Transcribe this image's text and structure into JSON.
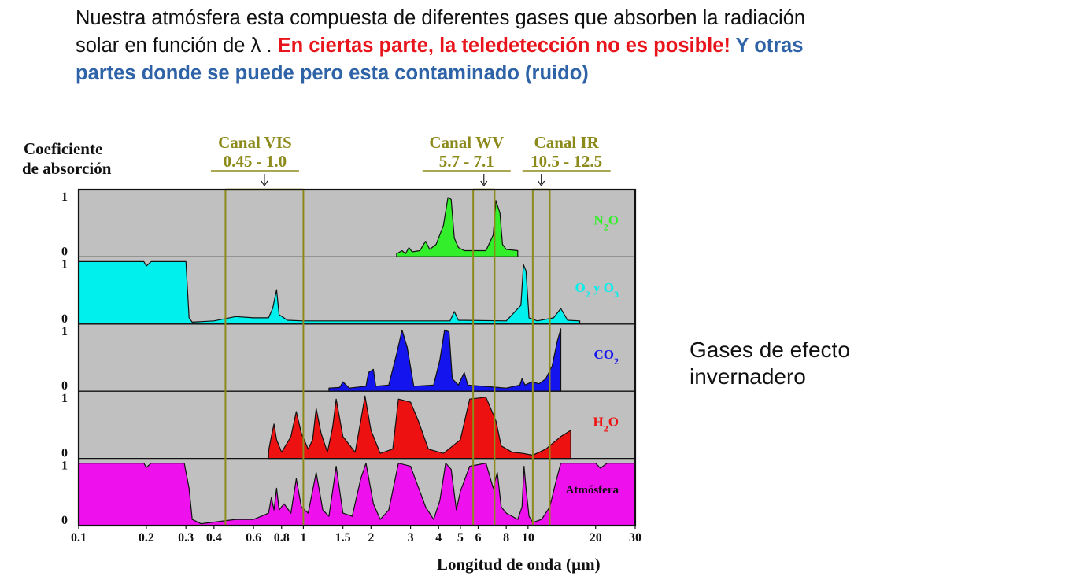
{
  "intro": {
    "line1": "Nuestra atmósfera esta compuesta de diferentes gases que absorben la radiación",
    "line2_plain": "solar en función de λ . ",
    "line2_red": "En ciertas parte, la teledetección no es posible!",
    "line2_blue": " Y otras",
    "line3_blue": "partes donde se puede pero esta contaminado (ruido)"
  },
  "side_label": {
    "line1": "Gases de efecto",
    "line2": "invernadero"
  },
  "chart_data": {
    "type": "area",
    "title": "",
    "ylabel_line1": "Coeficiente",
    "ylabel_line2": "de absorción",
    "xlabel": "Longitud de onda (µm)",
    "xscale": "log",
    "xlim": [
      0.1,
      30
    ],
    "x_ticks": [
      0.1,
      0.2,
      0.3,
      0.4,
      0.6,
      0.8,
      1,
      1.5,
      2,
      3,
      4,
      5,
      6,
      8,
      10,
      20,
      30
    ],
    "x_tick_labels": [
      "0.1",
      "0.2",
      "0.3",
      "0.4",
      "0.6",
      "0.8",
      "1",
      "1.5",
      "2",
      "3",
      "4",
      "5",
      "6",
      "8",
      "10",
      "20",
      "30"
    ],
    "ylim": [
      0,
      1
    ],
    "panel_y_labels": [
      "1",
      "0"
    ],
    "colors": {
      "background": "#c0c0c0",
      "channel_line": "#8d8a1c",
      "channel_text": "#8d8a1c",
      "arrow": "#222222"
    },
    "channels": [
      {
        "name": "Canal VIS",
        "range_label": "0.45 - 1.0",
        "range": [
          0.45,
          1.0
        ]
      },
      {
        "name": "Canal WV",
        "range_label": "5.7 - 7.1",
        "range": [
          5.7,
          7.1
        ]
      },
      {
        "name": "Canal IR",
        "range_label": "10.5 - 12.5",
        "range": [
          10.5,
          12.5
        ]
      }
    ],
    "series": [
      {
        "name": "N2O",
        "label_main": "N",
        "label_sub": "2",
        "label_tail": "O",
        "color": "#33ee2a",
        "points": [
          [
            2.6,
            0
          ],
          [
            2.6,
            0.05
          ],
          [
            2.75,
            0.1
          ],
          [
            2.85,
            0.05
          ],
          [
            2.95,
            0.15
          ],
          [
            3.05,
            0.08
          ],
          [
            3.3,
            0.1
          ],
          [
            3.5,
            0.25
          ],
          [
            3.65,
            0.12
          ],
          [
            3.9,
            0.2
          ],
          [
            4.2,
            0.5
          ],
          [
            4.4,
            0.95
          ],
          [
            4.55,
            0.92
          ],
          [
            4.7,
            0.3
          ],
          [
            4.9,
            0.15
          ],
          [
            5.2,
            0.1
          ],
          [
            6.5,
            0.1
          ],
          [
            7.0,
            0.35
          ],
          [
            7.2,
            0.9
          ],
          [
            7.5,
            0.7
          ],
          [
            7.7,
            0.2
          ],
          [
            8.0,
            0.12
          ],
          [
            9.0,
            0.1
          ],
          [
            9.0,
            0
          ]
        ]
      },
      {
        "name": "O2 y O3",
        "label_main": "O",
        "label_sub": "2",
        "label_mid": " y O",
        "label_sub2": "3",
        "color": "#00f0ee",
        "points": [
          [
            0.1,
            0
          ],
          [
            0.1,
            1
          ],
          [
            0.195,
            1
          ],
          [
            0.2,
            0.93
          ],
          [
            0.21,
            1
          ],
          [
            0.3,
            1
          ],
          [
            0.31,
            0.1
          ],
          [
            0.32,
            0.03
          ],
          [
            0.4,
            0.05
          ],
          [
            0.5,
            0.12
          ],
          [
            0.6,
            0.1
          ],
          [
            0.7,
            0.1
          ],
          [
            0.73,
            0.25
          ],
          [
            0.76,
            0.55
          ],
          [
            0.78,
            0.15
          ],
          [
            0.85,
            0.06
          ],
          [
            1.0,
            0.05
          ],
          [
            4.5,
            0.05
          ],
          [
            4.7,
            0.2
          ],
          [
            4.9,
            0.06
          ],
          [
            8.0,
            0.05
          ],
          [
            9.3,
            0.3
          ],
          [
            9.55,
            0.95
          ],
          [
            9.8,
            0.85
          ],
          [
            10.1,
            0.1
          ],
          [
            11.0,
            0.05
          ],
          [
            13.0,
            0.1
          ],
          [
            14.0,
            0.25
          ],
          [
            15.0,
            0.06
          ],
          [
            17.0,
            0.05
          ],
          [
            17.0,
            0
          ]
        ]
      },
      {
        "name": "CO2",
        "label_main": "CO",
        "label_sub": "2",
        "color": "#1414ee",
        "points": [
          [
            1.3,
            0
          ],
          [
            1.3,
            0.05
          ],
          [
            1.45,
            0.06
          ],
          [
            1.5,
            0.15
          ],
          [
            1.6,
            0.05
          ],
          [
            1.9,
            0.08
          ],
          [
            1.95,
            0.3
          ],
          [
            2.05,
            0.35
          ],
          [
            2.1,
            0.08
          ],
          [
            2.4,
            0.1
          ],
          [
            2.6,
            0.6
          ],
          [
            2.75,
            0.98
          ],
          [
            2.9,
            0.7
          ],
          [
            3.1,
            0.08
          ],
          [
            3.8,
            0.1
          ],
          [
            4.05,
            0.5
          ],
          [
            4.25,
            0.98
          ],
          [
            4.45,
            0.95
          ],
          [
            4.6,
            0.2
          ],
          [
            4.9,
            0.1
          ],
          [
            5.2,
            0.3
          ],
          [
            5.4,
            0.1
          ],
          [
            8.0,
            0.05
          ],
          [
            9.2,
            0.1
          ],
          [
            9.4,
            0.2
          ],
          [
            9.7,
            0.1
          ],
          [
            10.4,
            0.15
          ],
          [
            11.2,
            0.12
          ],
          [
            12.0,
            0.2
          ],
          [
            12.8,
            0.4
          ],
          [
            13.5,
            0.8
          ],
          [
            14.0,
            1
          ],
          [
            14.0,
            0
          ]
        ]
      },
      {
        "name": "H2O",
        "label_main": "H",
        "label_sub": "2",
        "label_tail": "O",
        "color": "#ee1111",
        "points": [
          [
            0.7,
            0
          ],
          [
            0.7,
            0.12
          ],
          [
            0.72,
            0.35
          ],
          [
            0.74,
            0.55
          ],
          [
            0.76,
            0.3
          ],
          [
            0.8,
            0.1
          ],
          [
            0.88,
            0.35
          ],
          [
            0.93,
            0.75
          ],
          [
            0.98,
            0.4
          ],
          [
            1.05,
            0.15
          ],
          [
            1.1,
            0.3
          ],
          [
            1.14,
            0.8
          ],
          [
            1.2,
            0.4
          ],
          [
            1.28,
            0.1
          ],
          [
            1.35,
            0.5
          ],
          [
            1.4,
            0.95
          ],
          [
            1.5,
            0.35
          ],
          [
            1.7,
            0.1
          ],
          [
            1.8,
            0.6
          ],
          [
            1.88,
            1
          ],
          [
            2.0,
            0.45
          ],
          [
            2.2,
            0.08
          ],
          [
            2.5,
            0.15
          ],
          [
            2.65,
            0.95
          ],
          [
            3.0,
            0.9
          ],
          [
            3.25,
            0.6
          ],
          [
            3.6,
            0.15
          ],
          [
            4.2,
            0.08
          ],
          [
            5.0,
            0.3
          ],
          [
            5.5,
            0.95
          ],
          [
            6.5,
            0.98
          ],
          [
            7.2,
            0.6
          ],
          [
            7.6,
            0.2
          ],
          [
            8.5,
            0.1
          ],
          [
            9.5,
            0.08
          ],
          [
            10.5,
            0.05
          ],
          [
            12.0,
            0.15
          ],
          [
            14.0,
            0.35
          ],
          [
            15.5,
            0.45
          ],
          [
            15.5,
            0
          ]
        ]
      },
      {
        "name": "Atmósfera",
        "label_main": "Atmósfera",
        "color": "#ee11ee",
        "points": [
          [
            0.1,
            0
          ],
          [
            0.1,
            1
          ],
          [
            0.195,
            1
          ],
          [
            0.2,
            0.93
          ],
          [
            0.21,
            1
          ],
          [
            0.295,
            1
          ],
          [
            0.31,
            0.6
          ],
          [
            0.32,
            0.1
          ],
          [
            0.35,
            0.03
          ],
          [
            0.5,
            0.1
          ],
          [
            0.6,
            0.1
          ],
          [
            0.65,
            0.15
          ],
          [
            0.7,
            0.2
          ],
          [
            0.72,
            0.45
          ],
          [
            0.74,
            0.25
          ],
          [
            0.76,
            0.6
          ],
          [
            0.78,
            0.25
          ],
          [
            0.82,
            0.35
          ],
          [
            0.88,
            0.2
          ],
          [
            0.93,
            0.75
          ],
          [
            0.98,
            0.3
          ],
          [
            1.05,
            0.2
          ],
          [
            1.14,
            0.85
          ],
          [
            1.22,
            0.25
          ],
          [
            1.3,
            0.15
          ],
          [
            1.4,
            0.95
          ],
          [
            1.5,
            0.2
          ],
          [
            1.65,
            0.15
          ],
          [
            1.8,
            0.75
          ],
          [
            1.9,
            1
          ],
          [
            2.05,
            0.35
          ],
          [
            2.2,
            0.1
          ],
          [
            2.4,
            0.25
          ],
          [
            2.65,
            1
          ],
          [
            3.0,
            0.95
          ],
          [
            3.3,
            0.55
          ],
          [
            3.5,
            0.3
          ],
          [
            3.8,
            0.1
          ],
          [
            4.05,
            0.4
          ],
          [
            4.3,
            1
          ],
          [
            4.55,
            0.9
          ],
          [
            4.8,
            0.25
          ],
          [
            5.0,
            0.55
          ],
          [
            5.5,
            0.95
          ],
          [
            6.5,
            1
          ],
          [
            7.0,
            0.6
          ],
          [
            7.3,
            0.85
          ],
          [
            7.6,
            0.3
          ],
          [
            8.0,
            0.2
          ],
          [
            8.5,
            0.15
          ],
          [
            9.0,
            0.1
          ],
          [
            9.4,
            0.3
          ],
          [
            9.6,
            0.95
          ],
          [
            9.8,
            0.6
          ],
          [
            10.1,
            0.15
          ],
          [
            10.5,
            0.05
          ],
          [
            11.5,
            0.1
          ],
          [
            12.5,
            0.3
          ],
          [
            13.3,
            0.7
          ],
          [
            14.0,
            1
          ],
          [
            20.0,
            1
          ],
          [
            21.0,
            0.92
          ],
          [
            22.5,
            1
          ],
          [
            30.0,
            1
          ],
          [
            30.0,
            0
          ]
        ]
      }
    ]
  }
}
